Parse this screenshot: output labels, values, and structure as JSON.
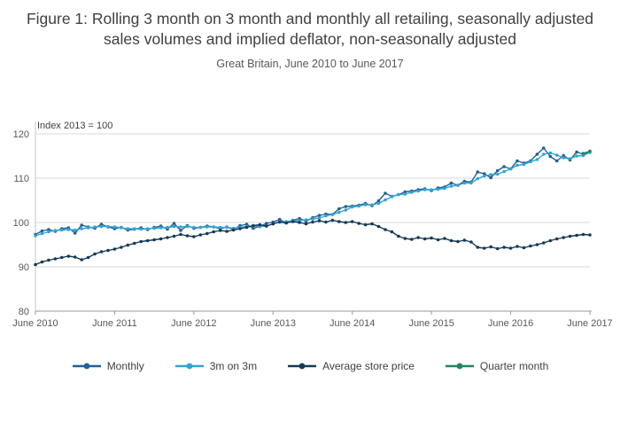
{
  "title": "Figure 1: Rolling 3 month on 3 month and monthly all retailing, seasonally adjusted sales volumes and implied deflator, non-seasonally adjusted",
  "subtitle": "Great Britain, June 2010 to June 2017",
  "chart_data": {
    "type": "line",
    "y_axis_note": "Index 2013 = 100",
    "grid": true,
    "legend_position": "bottom",
    "ylim": [
      80,
      121.6
    ],
    "yticks": [
      80,
      90,
      100,
      110,
      120
    ],
    "x_tick_labels": [
      "June 2010",
      "June 2011",
      "June 2012",
      "June 2013",
      "June 2014",
      "June 2015",
      "June 2016",
      "June 2017"
    ],
    "x_tick_indices": [
      0,
      12,
      24,
      36,
      48,
      60,
      72,
      84
    ],
    "x_unit": "months from June 2010 to June 2017",
    "series": [
      {
        "name": "Monthly",
        "color": "#206095",
        "values": [
          97.3,
          98.1,
          98.4,
          98.0,
          98.6,
          98.8,
          97.6,
          99.4,
          99.0,
          98.7,
          99.6,
          99.0,
          98.6,
          98.9,
          98.3,
          98.5,
          98.8,
          98.4,
          98.9,
          99.2,
          98.5,
          99.8,
          98.2,
          99.3,
          98.7,
          98.9,
          99.2,
          99.0,
          98.6,
          99.0,
          98.4,
          99.3,
          99.6,
          98.7,
          99.1,
          99.8,
          100.1,
          100.7,
          99.9,
          100.5,
          100.9,
          100.3,
          101.1,
          101.6,
          101.9,
          101.8,
          103.1,
          103.6,
          103.7,
          103.9,
          104.3,
          103.8,
          104.9,
          106.6,
          105.9,
          106.3,
          106.9,
          107.1,
          107.4,
          107.6,
          107.2,
          107.8,
          108.0,
          108.9,
          108.4,
          109.3,
          109.1,
          111.4,
          111.0,
          110.1,
          111.7,
          112.6,
          112.1,
          113.9,
          113.4,
          113.9,
          115.4,
          116.8,
          114.9,
          113.9,
          115.1,
          114.1,
          115.9,
          115.4,
          116.0
        ]
      },
      {
        "name": "3m on 3m",
        "color": "#33a3d4",
        "values": [
          97.0,
          97.5,
          97.9,
          98.2,
          98.3,
          98.4,
          98.3,
          98.6,
          98.8,
          99.0,
          99.1,
          99.1,
          99.0,
          98.8,
          98.6,
          98.6,
          98.5,
          98.6,
          98.7,
          98.8,
          98.9,
          99.1,
          99.0,
          99.1,
          98.9,
          98.9,
          99.0,
          99.0,
          98.9,
          98.9,
          98.7,
          98.9,
          99.1,
          99.2,
          99.1,
          99.2,
          99.7,
          100.2,
          100.2,
          100.4,
          100.4,
          100.6,
          100.8,
          101.0,
          101.5,
          101.8,
          102.3,
          102.8,
          103.5,
          103.7,
          104.0,
          104.0,
          104.3,
          105.1,
          105.8,
          106.3,
          106.4,
          106.8,
          107.1,
          107.4,
          107.4,
          107.5,
          107.7,
          108.2,
          108.4,
          108.9,
          108.9,
          109.9,
          110.5,
          110.8,
          110.9,
          111.5,
          112.1,
          112.9,
          113.1,
          113.7,
          114.2,
          115.4,
          115.7,
          115.2,
          114.6,
          114.4,
          115.0,
          115.1,
          115.8
        ]
      },
      {
        "name": "Average store price",
        "color": "#163a56",
        "values": [
          90.5,
          91.1,
          91.5,
          91.8,
          92.1,
          92.4,
          92.2,
          91.6,
          92.1,
          92.9,
          93.4,
          93.7,
          94.0,
          94.4,
          94.9,
          95.3,
          95.7,
          95.9,
          96.1,
          96.3,
          96.6,
          96.9,
          97.3,
          97.0,
          96.8,
          97.2,
          97.5,
          97.9,
          98.2,
          98.0,
          98.3,
          98.6,
          98.9,
          99.3,
          99.5,
          99.2,
          99.7,
          100.1,
          99.9,
          100.2,
          100.0,
          99.7,
          100.1,
          100.4,
          100.1,
          100.5,
          100.2,
          100.0,
          100.2,
          99.8,
          99.5,
          99.7,
          99.1,
          98.4,
          97.9,
          96.9,
          96.4,
          96.2,
          96.6,
          96.3,
          96.5,
          96.1,
          96.4,
          95.9,
          95.7,
          96.0,
          95.6,
          94.4,
          94.2,
          94.5,
          94.1,
          94.4,
          94.2,
          94.6,
          94.3,
          94.7,
          95.0,
          95.4,
          95.9,
          96.3,
          96.6,
          96.9,
          97.1,
          97.3,
          97.2
        ]
      },
      {
        "name": "Quarter month",
        "color": "#24865c",
        "x_start": 83,
        "values": [
          115.6,
          116.1
        ]
      }
    ]
  }
}
